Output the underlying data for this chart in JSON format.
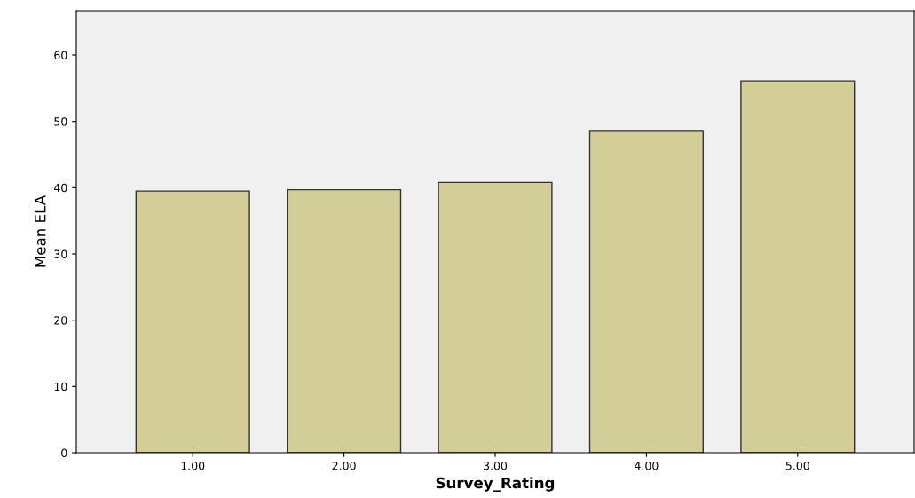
{
  "chart_data": {
    "type": "bar",
    "xlabel": "Survey_Rating",
    "ylabel": "Mean ELA",
    "categories": [
      "1.00",
      "2.00",
      "3.00",
      "4.00",
      "5.00"
    ],
    "values": [
      39.5,
      39.7,
      40.8,
      48.5,
      56.1
    ],
    "color": "#d3ce97",
    "ylim": [
      0,
      66.7
    ],
    "yticks": [
      0,
      10,
      20,
      30,
      40,
      50,
      60
    ],
    "grid": false
  }
}
